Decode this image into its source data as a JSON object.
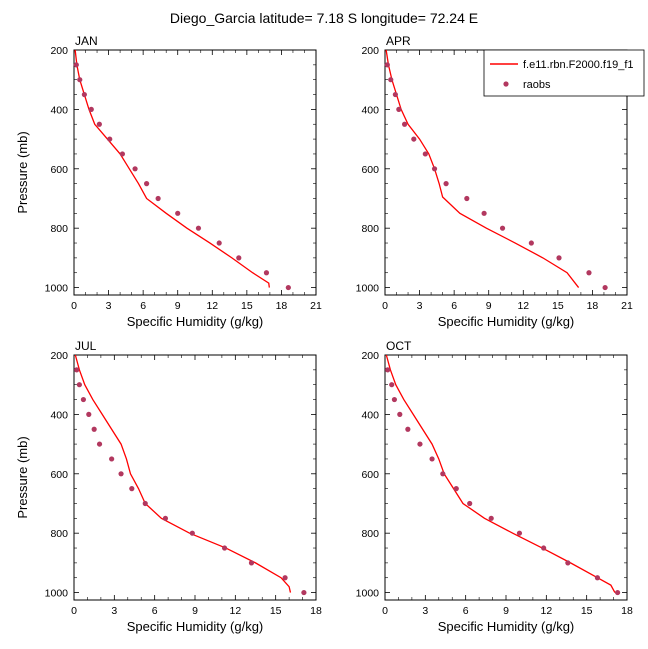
{
  "figure_title": "Diego_Garcia  latitude= 7.18 S longitude= 72.24 E",
  "legend": {
    "model_label": "f.e11.rbn.F2000.f19_f1",
    "obs_label": "raobs",
    "model_color": "#ff0000",
    "obs_color": "#b2385f"
  },
  "chart_data": [
    {
      "type": "line",
      "panel": "JAN",
      "xlabel": "Specific Humidity (g/kg)",
      "ylabel": "Pressure (mb)",
      "xlim": [
        0,
        21
      ],
      "ylim": [
        1025,
        200
      ],
      "y_reversed": true,
      "xticks": [
        0,
        3,
        6,
        9,
        12,
        15,
        18,
        21
      ],
      "yticks": [
        200,
        400,
        600,
        800,
        1000
      ],
      "series": [
        {
          "name": "f.e11.rbn.F2000.f19_f1",
          "style": "line",
          "points": [
            [
              0.1,
              200
            ],
            [
              0.25,
              250
            ],
            [
              0.5,
              300
            ],
            [
              0.9,
              350
            ],
            [
              1.3,
              400
            ],
            [
              1.8,
              450
            ],
            [
              2.9,
              500
            ],
            [
              4.0,
              550
            ],
            [
              4.8,
              600
            ],
            [
              5.6,
              650
            ],
            [
              6.3,
              700
            ],
            [
              8.0,
              750
            ],
            [
              9.8,
              800
            ],
            [
              11.8,
              850
            ],
            [
              13.7,
              900
            ],
            [
              15.5,
              950
            ],
            [
              16.9,
              985
            ],
            [
              16.95,
              1000
            ]
          ]
        },
        {
          "name": "raobs",
          "style": "markers",
          "points": [
            [
              0.2,
              250
            ],
            [
              0.5,
              300
            ],
            [
              0.9,
              350
            ],
            [
              1.5,
              400
            ],
            [
              2.2,
              450
            ],
            [
              3.1,
              500
            ],
            [
              4.2,
              550
            ],
            [
              5.3,
              600
            ],
            [
              6.3,
              650
            ],
            [
              7.3,
              700
            ],
            [
              9.0,
              750
            ],
            [
              10.8,
              800
            ],
            [
              12.6,
              850
            ],
            [
              14.3,
              900
            ],
            [
              16.7,
              950
            ],
            [
              18.6,
              1000
            ]
          ]
        }
      ]
    },
    {
      "type": "line",
      "panel": "APR",
      "xlabel": "Specific Humidity (g/kg)",
      "ylabel": "",
      "xlim": [
        0,
        21
      ],
      "ylim": [
        1025,
        200
      ],
      "y_reversed": true,
      "xticks": [
        0,
        3,
        6,
        9,
        12,
        15,
        18,
        21
      ],
      "yticks": [
        200,
        400,
        600,
        800,
        1000
      ],
      "series": [
        {
          "name": "f.e11.rbn.F2000.f19_f1",
          "style": "line",
          "points": [
            [
              0.1,
              200
            ],
            [
              0.3,
              250
            ],
            [
              0.6,
              300
            ],
            [
              1.0,
              350
            ],
            [
              1.4,
              400
            ],
            [
              2.0,
              450
            ],
            [
              3.0,
              500
            ],
            [
              3.8,
              550
            ],
            [
              4.3,
              600
            ],
            [
              4.7,
              650
            ],
            [
              5.0,
              695
            ],
            [
              6.5,
              750
            ],
            [
              8.8,
              800
            ],
            [
              11.3,
              850
            ],
            [
              13.7,
              900
            ],
            [
              15.8,
              950
            ],
            [
              16.8,
              1000
            ]
          ]
        },
        {
          "name": "raobs",
          "style": "markers",
          "points": [
            [
              0.2,
              250
            ],
            [
              0.5,
              300
            ],
            [
              0.9,
              350
            ],
            [
              1.2,
              400
            ],
            [
              1.7,
              450
            ],
            [
              2.5,
              500
            ],
            [
              3.5,
              550
            ],
            [
              4.3,
              600
            ],
            [
              5.3,
              650
            ],
            [
              7.1,
              700
            ],
            [
              8.6,
              750
            ],
            [
              10.2,
              800
            ],
            [
              12.7,
              850
            ],
            [
              15.1,
              900
            ],
            [
              17.7,
              950
            ],
            [
              19.1,
              1000
            ]
          ]
        }
      ]
    },
    {
      "type": "line",
      "panel": "JUL",
      "xlabel": "Specific Humidity (g/kg)",
      "ylabel": "Pressure (mb)",
      "xlim": [
        0,
        18
      ],
      "ylim": [
        1025,
        200
      ],
      "y_reversed": true,
      "xticks": [
        0,
        3,
        6,
        9,
        12,
        15,
        18
      ],
      "yticks": [
        200,
        400,
        600,
        800,
        1000
      ],
      "series": [
        {
          "name": "f.e11.rbn.F2000.f19_f1",
          "style": "line",
          "points": [
            [
              0.1,
              200
            ],
            [
              0.4,
              250
            ],
            [
              0.8,
              300
            ],
            [
              1.4,
              350
            ],
            [
              2.1,
              400
            ],
            [
              2.8,
              450
            ],
            [
              3.5,
              500
            ],
            [
              3.9,
              550
            ],
            [
              4.2,
              600
            ],
            [
              4.8,
              650
            ],
            [
              5.3,
              700
            ],
            [
              6.5,
              750
            ],
            [
              8.6,
              800
            ],
            [
              11.3,
              850
            ],
            [
              13.5,
              900
            ],
            [
              15.4,
              950
            ],
            [
              16.0,
              980
            ],
            [
              16.1,
              1000
            ]
          ]
        },
        {
          "name": "raobs",
          "style": "markers",
          "points": [
            [
              0.2,
              250
            ],
            [
              0.4,
              300
            ],
            [
              0.7,
              350
            ],
            [
              1.1,
              400
            ],
            [
              1.5,
              450
            ],
            [
              1.9,
              500
            ],
            [
              2.8,
              550
            ],
            [
              3.5,
              600
            ],
            [
              4.3,
              650
            ],
            [
              5.3,
              700
            ],
            [
              6.8,
              750
            ],
            [
              8.8,
              800
            ],
            [
              11.2,
              850
            ],
            [
              13.2,
              900
            ],
            [
              15.7,
              950
            ],
            [
              17.1,
              1000
            ]
          ]
        }
      ]
    },
    {
      "type": "line",
      "panel": "OCT",
      "xlabel": "Specific Humidity (g/kg)",
      "ylabel": "",
      "xlim": [
        0,
        18
      ],
      "ylim": [
        1025,
        200
      ],
      "y_reversed": true,
      "xticks": [
        0,
        3,
        6,
        9,
        12,
        15,
        18
      ],
      "yticks": [
        200,
        400,
        600,
        800,
        1000
      ],
      "series": [
        {
          "name": "f.e11.rbn.F2000.f19_f1",
          "style": "line",
          "points": [
            [
              0.1,
              200
            ],
            [
              0.4,
              250
            ],
            [
              0.8,
              300
            ],
            [
              1.4,
              350
            ],
            [
              2.1,
              400
            ],
            [
              2.8,
              450
            ],
            [
              3.5,
              500
            ],
            [
              4.0,
              550
            ],
            [
              4.4,
              600
            ],
            [
              5.1,
              650
            ],
            [
              5.8,
              700
            ],
            [
              7.4,
              750
            ],
            [
              9.5,
              800
            ],
            [
              11.7,
              850
            ],
            [
              13.8,
              900
            ],
            [
              15.8,
              950
            ],
            [
              16.8,
              975
            ],
            [
              17.1,
              1000
            ]
          ]
        },
        {
          "name": "raobs",
          "style": "markers",
          "points": [
            [
              0.2,
              250
            ],
            [
              0.5,
              300
            ],
            [
              0.7,
              350
            ],
            [
              1.1,
              400
            ],
            [
              1.7,
              450
            ],
            [
              2.6,
              500
            ],
            [
              3.5,
              550
            ],
            [
              4.3,
              600
            ],
            [
              5.3,
              650
            ],
            [
              6.3,
              700
            ],
            [
              7.9,
              750
            ],
            [
              10.0,
              800
            ],
            [
              11.8,
              850
            ],
            [
              13.6,
              900
            ],
            [
              15.8,
              950
            ],
            [
              17.3,
              1000
            ]
          ]
        }
      ]
    }
  ]
}
